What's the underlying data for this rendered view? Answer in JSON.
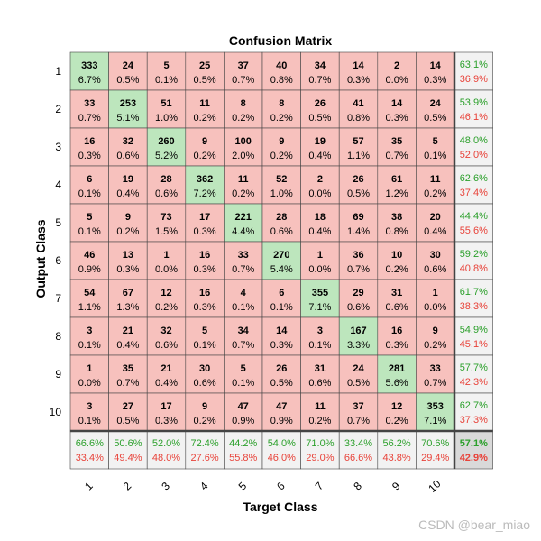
{
  "chart_data": {
    "type": "heatmap",
    "title": "Confusion Matrix",
    "xlabel": "Target Class",
    "ylabel": "Output Class",
    "x_ticks": [
      "1",
      "2",
      "3",
      "4",
      "5",
      "6",
      "7",
      "8",
      "9",
      "10"
    ],
    "y_ticks": [
      "1",
      "2",
      "3",
      "4",
      "5",
      "6",
      "7",
      "8",
      "9",
      "10"
    ],
    "counts": [
      [
        333,
        24,
        5,
        25,
        37,
        40,
        34,
        14,
        2,
        14
      ],
      [
        33,
        253,
        51,
        11,
        8,
        8,
        26,
        41,
        14,
        24
      ],
      [
        16,
        32,
        260,
        9,
        100,
        9,
        19,
        57,
        35,
        5
      ],
      [
        6,
        19,
        28,
        362,
        11,
        52,
        2,
        26,
        61,
        11
      ],
      [
        5,
        9,
        73,
        17,
        221,
        28,
        18,
        69,
        38,
        20
      ],
      [
        46,
        13,
        1,
        16,
        33,
        270,
        1,
        36,
        10,
        30
      ],
      [
        54,
        67,
        12,
        16,
        4,
        6,
        355,
        29,
        31,
        1
      ],
      [
        3,
        21,
        32,
        5,
        34,
        14,
        3,
        167,
        16,
        9
      ],
      [
        1,
        35,
        21,
        30,
        5,
        26,
        31,
        24,
        281,
        33
      ],
      [
        3,
        27,
        17,
        9,
        47,
        47,
        11,
        37,
        12,
        353
      ]
    ],
    "percents": [
      [
        "6.7%",
        "0.5%",
        "0.1%",
        "0.5%",
        "0.7%",
        "0.8%",
        "0.7%",
        "0.3%",
        "0.0%",
        "0.3%"
      ],
      [
        "0.7%",
        "5.1%",
        "1.0%",
        "0.2%",
        "0.2%",
        "0.2%",
        "0.5%",
        "0.8%",
        "0.3%",
        "0.5%"
      ],
      [
        "0.3%",
        "0.6%",
        "5.2%",
        "0.2%",
        "2.0%",
        "0.2%",
        "0.4%",
        "1.1%",
        "0.7%",
        "0.1%"
      ],
      [
        "0.1%",
        "0.4%",
        "0.6%",
        "7.2%",
        "0.2%",
        "1.0%",
        "0.0%",
        "0.5%",
        "1.2%",
        "0.2%"
      ],
      [
        "0.1%",
        "0.2%",
        "1.5%",
        "0.3%",
        "4.4%",
        "0.6%",
        "0.4%",
        "1.4%",
        "0.8%",
        "0.4%"
      ],
      [
        "0.9%",
        "0.3%",
        "0.0%",
        "0.3%",
        "0.7%",
        "5.4%",
        "0.0%",
        "0.7%",
        "0.2%",
        "0.6%"
      ],
      [
        "1.1%",
        "1.3%",
        "0.2%",
        "0.3%",
        "0.1%",
        "0.1%",
        "7.1%",
        "0.6%",
        "0.6%",
        "0.0%"
      ],
      [
        "0.1%",
        "0.4%",
        "0.6%",
        "0.1%",
        "0.7%",
        "0.3%",
        "0.1%",
        "3.3%",
        "0.3%",
        "0.2%"
      ],
      [
        "0.0%",
        "0.7%",
        "0.4%",
        "0.6%",
        "0.1%",
        "0.5%",
        "0.6%",
        "0.5%",
        "5.6%",
        "0.7%"
      ],
      [
        "0.1%",
        "0.5%",
        "0.3%",
        "0.2%",
        "0.9%",
        "0.9%",
        "0.2%",
        "0.7%",
        "0.2%",
        "7.1%"
      ]
    ],
    "row_summary": [
      [
        "63.1%",
        "36.9%"
      ],
      [
        "53.9%",
        "46.1%"
      ],
      [
        "48.0%",
        "52.0%"
      ],
      [
        "62.6%",
        "37.4%"
      ],
      [
        "44.4%",
        "55.6%"
      ],
      [
        "59.2%",
        "40.8%"
      ],
      [
        "61.7%",
        "38.3%"
      ],
      [
        "54.9%",
        "45.1%"
      ],
      [
        "57.7%",
        "42.3%"
      ],
      [
        "62.7%",
        "37.3%"
      ]
    ],
    "col_summary": [
      [
        "66.6%",
        "33.4%"
      ],
      [
        "50.6%",
        "49.4%"
      ],
      [
        "52.0%",
        "48.0%"
      ],
      [
        "72.4%",
        "27.6%"
      ],
      [
        "44.2%",
        "55.8%"
      ],
      [
        "54.0%",
        "46.0%"
      ],
      [
        "71.0%",
        "29.0%"
      ],
      [
        "33.4%",
        "66.6%"
      ],
      [
        "56.2%",
        "43.8%"
      ],
      [
        "70.6%",
        "29.4%"
      ]
    ],
    "overall": [
      "57.1%",
      "42.9%"
    ],
    "colors": {
      "diagonal": "#bde6bd",
      "off_diagonal": "#f7c1bd",
      "summary_bg": "#f2f2f2",
      "overall_bg": "#d9d9d9",
      "accuracy_text": "#2ca02c",
      "error_text": "#e8433a"
    }
  },
  "watermark": "CSDN @bear_miao"
}
